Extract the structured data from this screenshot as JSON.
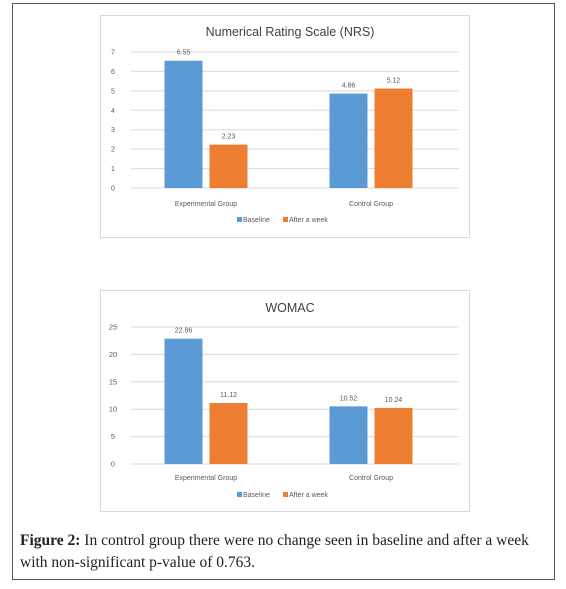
{
  "colors": {
    "baseline": "#5b9bd5",
    "after_week": "#ed7d31",
    "axis_text": "#595959",
    "grid": "#d9d9d9",
    "title": "#404040"
  },
  "chart_data": [
    {
      "type": "bar",
      "title": "Numerical Rating Scale  (NRS)",
      "categories": [
        "Experimental Group",
        "Control Group"
      ],
      "series": [
        {
          "name": "Baseline",
          "values": [
            6.55,
            4.86
          ],
          "labels": [
            "6.55",
            "4.86"
          ]
        },
        {
          "name": "After a week",
          "values": [
            2.23,
            5.12
          ],
          "labels": [
            "2.23",
            "5.12"
          ]
        }
      ],
      "ylim": [
        0,
        7
      ],
      "yticks": [
        "0",
        "1",
        "2",
        "3",
        "4",
        "5",
        "6",
        "7"
      ],
      "grid": true,
      "legend": "bottom"
    },
    {
      "type": "bar",
      "title": "WOMAC",
      "categories": [
        "Experimental Group",
        "Control Group"
      ],
      "series": [
        {
          "name": "Baseline",
          "values": [
            22.86,
            10.52
          ],
          "labels": [
            "22.86",
            "10.52"
          ]
        },
        {
          "name": "After a week",
          "values": [
            11.12,
            10.24
          ],
          "labels": [
            "11.12",
            "10.24"
          ]
        }
      ],
      "ylim": [
        0,
        25
      ],
      "yticks": [
        "0",
        "5",
        "10",
        "15",
        "20",
        "25"
      ],
      "grid": true,
      "legend": "bottom"
    }
  ],
  "caption": {
    "label": "Figure 2:",
    "text": " In control group there were no change seen in baseline and after a week with non-significant p-value of 0.763."
  }
}
